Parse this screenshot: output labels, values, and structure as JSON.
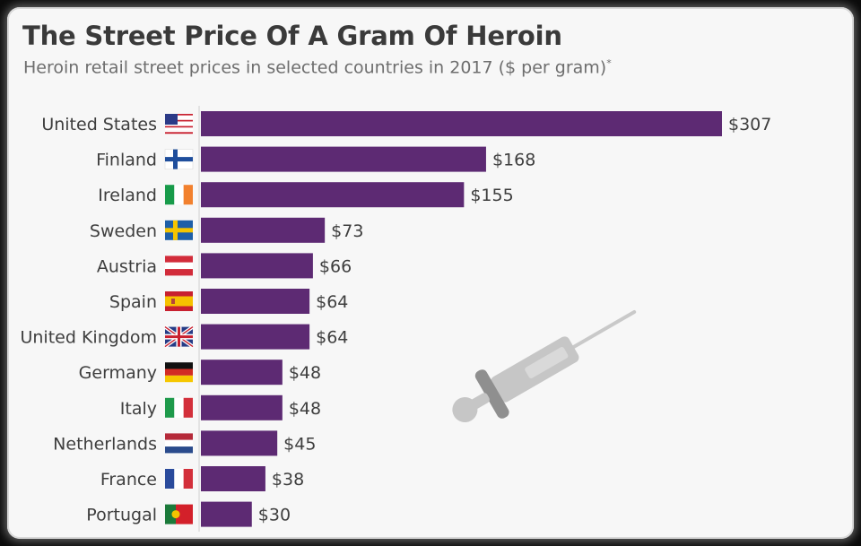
{
  "title": "The Street Price Of A Gram Of Heroin",
  "subtitle": "Heroin retail street prices in selected countries in 2017 ($ per gram)",
  "subtitle_mark": "*",
  "colors": {
    "bar": "#5d2a73",
    "text": "#3e3e3e",
    "syringe": "#c6c6c6"
  },
  "chart_data": {
    "type": "bar",
    "orientation": "horizontal",
    "title": "The Street Price Of A Gram Of Heroin",
    "subtitle": "Heroin retail street prices in selected countries in 2017 ($ per gram)",
    "categories": [
      "United States",
      "Finland",
      "Ireland",
      "Sweden",
      "Austria",
      "Spain",
      "United Kingdom",
      "Germany",
      "Italy",
      "Netherlands",
      "France",
      "Portugal"
    ],
    "values": [
      307,
      168,
      155,
      73,
      66,
      64,
      64,
      48,
      48,
      45,
      38,
      30
    ],
    "value_labels": [
      "$307",
      "$168",
      "$155",
      "$73",
      "$66",
      "$64",
      "$64",
      "$48",
      "$48",
      "$45",
      "$38",
      "$30"
    ],
    "flags": [
      "us-flag-icon",
      "fi-flag-icon",
      "ie-flag-icon",
      "se-flag-icon",
      "at-flag-icon",
      "es-flag-icon",
      "gb-flag-icon",
      "de-flag-icon",
      "it-flag-icon",
      "nl-flag-icon",
      "fr-flag-icon",
      "pt-flag-icon"
    ],
    "xlim": [
      0,
      307
    ],
    "grid": false,
    "legend": "none",
    "decoration": "syringe-icon"
  }
}
